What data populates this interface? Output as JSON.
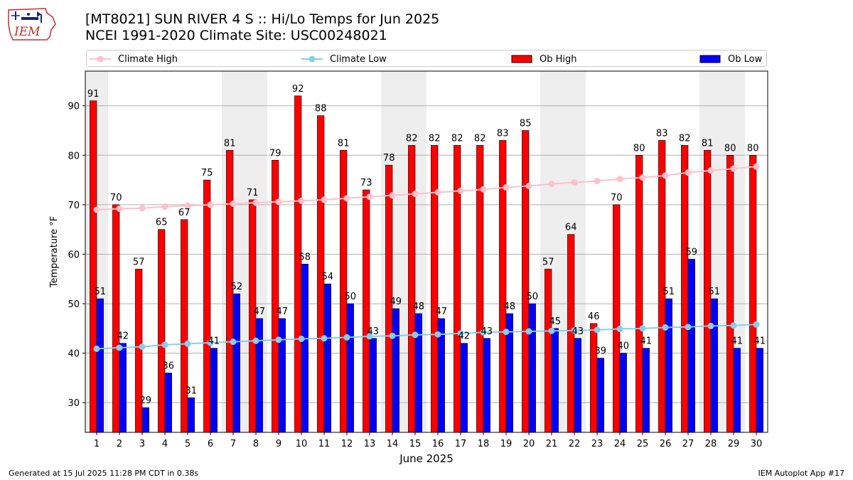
{
  "title_line1": "[MT8021] SUN RIVER 4 S :: Hi/Lo Temps for Jun 2025",
  "title_line2": "NCEI 1991-2020 Climate Site: USC00248021",
  "logo_text": "IEM",
  "footer_left": "Generated at 15 Jul 2025 11:28 PM CDT in 0.38s",
  "footer_right": "IEM Autoplot App #17",
  "colors": {
    "ob_high": "#ff0000",
    "ob_low": "#0000ff",
    "climate_high": "#ffc0cb",
    "climate_low": "#87ceeb",
    "weekend_shade": "#eeeeee",
    "grid": "#b0b0b0"
  },
  "legend": [
    {
      "label": "Climate High",
      "kind": "line",
      "color": "#ffc0cb"
    },
    {
      "label": "Climate Low",
      "kind": "line",
      "color": "#87ceeb"
    },
    {
      "label": "Ob High",
      "kind": "box",
      "color": "#ff0000"
    },
    {
      "label": "Ob Low",
      "kind": "box",
      "color": "#0000ff"
    }
  ],
  "chart_data": {
    "type": "bar",
    "xlabel": "June 2025",
    "ylabel": "Temperature °F",
    "ylim": [
      24,
      97
    ],
    "yticks": [
      30,
      40,
      50,
      60,
      70,
      80,
      90
    ],
    "grid": "horizontal",
    "legend_position": "top",
    "categories": [
      "1",
      "2",
      "3",
      "4",
      "5",
      "6",
      "7",
      "8",
      "9",
      "10",
      "11",
      "12",
      "13",
      "14",
      "15",
      "16",
      "17",
      "18",
      "19",
      "20",
      "21",
      "22",
      "23",
      "24",
      "25",
      "26",
      "27",
      "28",
      "29",
      "30"
    ],
    "shaded_days": [
      1,
      7,
      8,
      14,
      15,
      21,
      22,
      28,
      29
    ],
    "series": [
      {
        "name": "Ob High",
        "kind": "bar",
        "values": [
          91,
          70,
          57,
          65,
          67,
          75,
          81,
          71,
          79,
          92,
          88,
          81,
          73,
          78,
          82,
          82,
          82,
          82,
          83,
          85,
          57,
          64,
          46,
          70,
          80,
          83,
          82,
          81,
          80,
          80
        ]
      },
      {
        "name": "Ob Low",
        "kind": "bar",
        "values": [
          51,
          42,
          29,
          36,
          31,
          41,
          52,
          47,
          47,
          58,
          54,
          50,
          43,
          49,
          48,
          47,
          42,
          43,
          48,
          50,
          45,
          43,
          39,
          40,
          41,
          51,
          59,
          51,
          41,
          41
        ]
      },
      {
        "name": "Climate High",
        "kind": "line",
        "values": [
          69.0,
          69.2,
          69.3,
          69.6,
          69.8,
          70.0,
          70.2,
          70.4,
          70.6,
          70.8,
          71.0,
          71.3,
          71.6,
          71.9,
          72.2,
          72.5,
          72.8,
          73.1,
          73.5,
          73.8,
          74.2,
          74.5,
          74.8,
          75.2,
          75.5,
          75.9,
          76.5,
          76.9,
          77.3,
          77.7
        ]
      },
      {
        "name": "Climate Low",
        "kind": "line",
        "values": [
          40.9,
          41.1,
          41.3,
          41.7,
          41.9,
          42.1,
          42.3,
          42.5,
          42.7,
          42.9,
          43.0,
          43.2,
          43.4,
          43.5,
          43.7,
          43.8,
          44.0,
          44.2,
          44.3,
          44.4,
          44.5,
          44.6,
          44.7,
          44.9,
          45.0,
          45.2,
          45.3,
          45.5,
          45.6,
          45.8
        ]
      }
    ]
  }
}
